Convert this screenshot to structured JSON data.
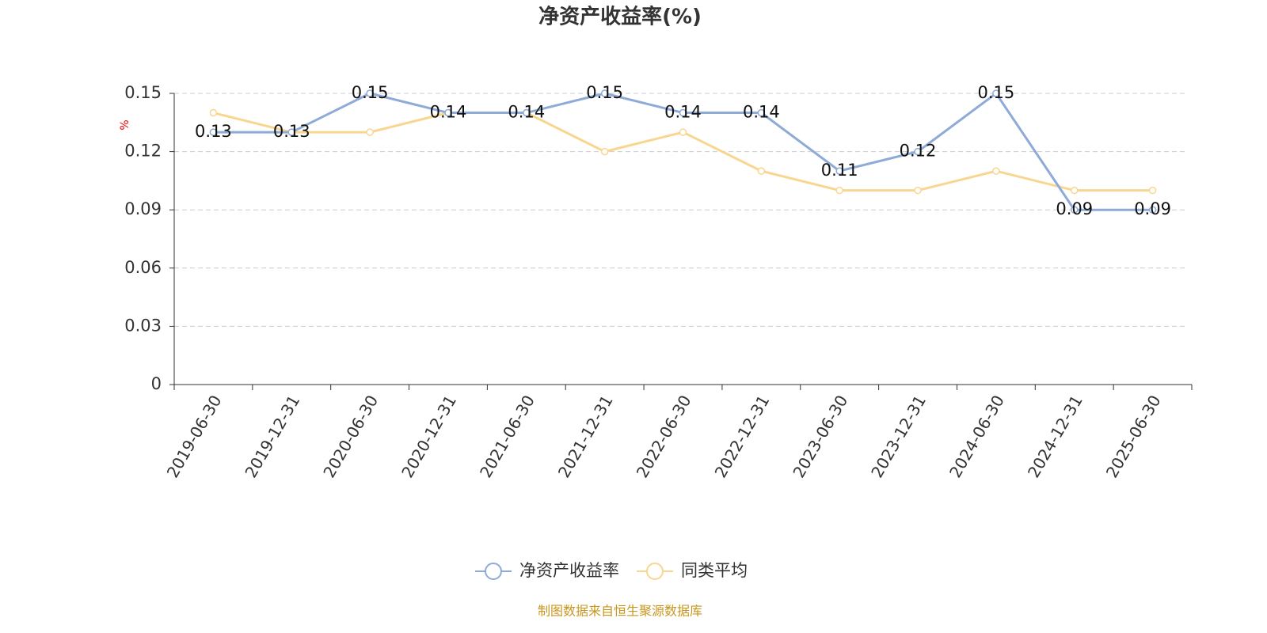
{
  "chart_data": {
    "type": "line",
    "title": "净资产收益率(%)",
    "y_label": "%",
    "categories": [
      "2019-06-30",
      "2019-12-31",
      "2020-06-30",
      "2020-12-31",
      "2021-06-30",
      "2021-12-31",
      "2022-06-30",
      "2022-12-31",
      "2023-06-30",
      "2023-12-31",
      "2024-06-30",
      "2024-12-31",
      "2025-06-30"
    ],
    "series": [
      {
        "name": "净资产收益率",
        "color": "#8eaad6",
        "values": [
          0.13,
          0.13,
          0.15,
          0.14,
          0.14,
          0.15,
          0.14,
          0.14,
          0.11,
          0.12,
          0.15,
          0.09,
          0.09
        ],
        "data_labels": true
      },
      {
        "name": "同类平均",
        "color": "#f9d690",
        "values": [
          0.14,
          0.13,
          0.13,
          0.14,
          0.14,
          0.12,
          0.13,
          0.11,
          0.1,
          0.1,
          0.11,
          0.1,
          0.1
        ],
        "data_labels": false
      }
    ],
    "ylim": [
      0,
      0.15
    ],
    "yticks": [
      0,
      0.03,
      0.06,
      0.09,
      0.12,
      0.15
    ],
    "grid": true,
    "source": "制图数据来自恒生聚源数据库"
  }
}
